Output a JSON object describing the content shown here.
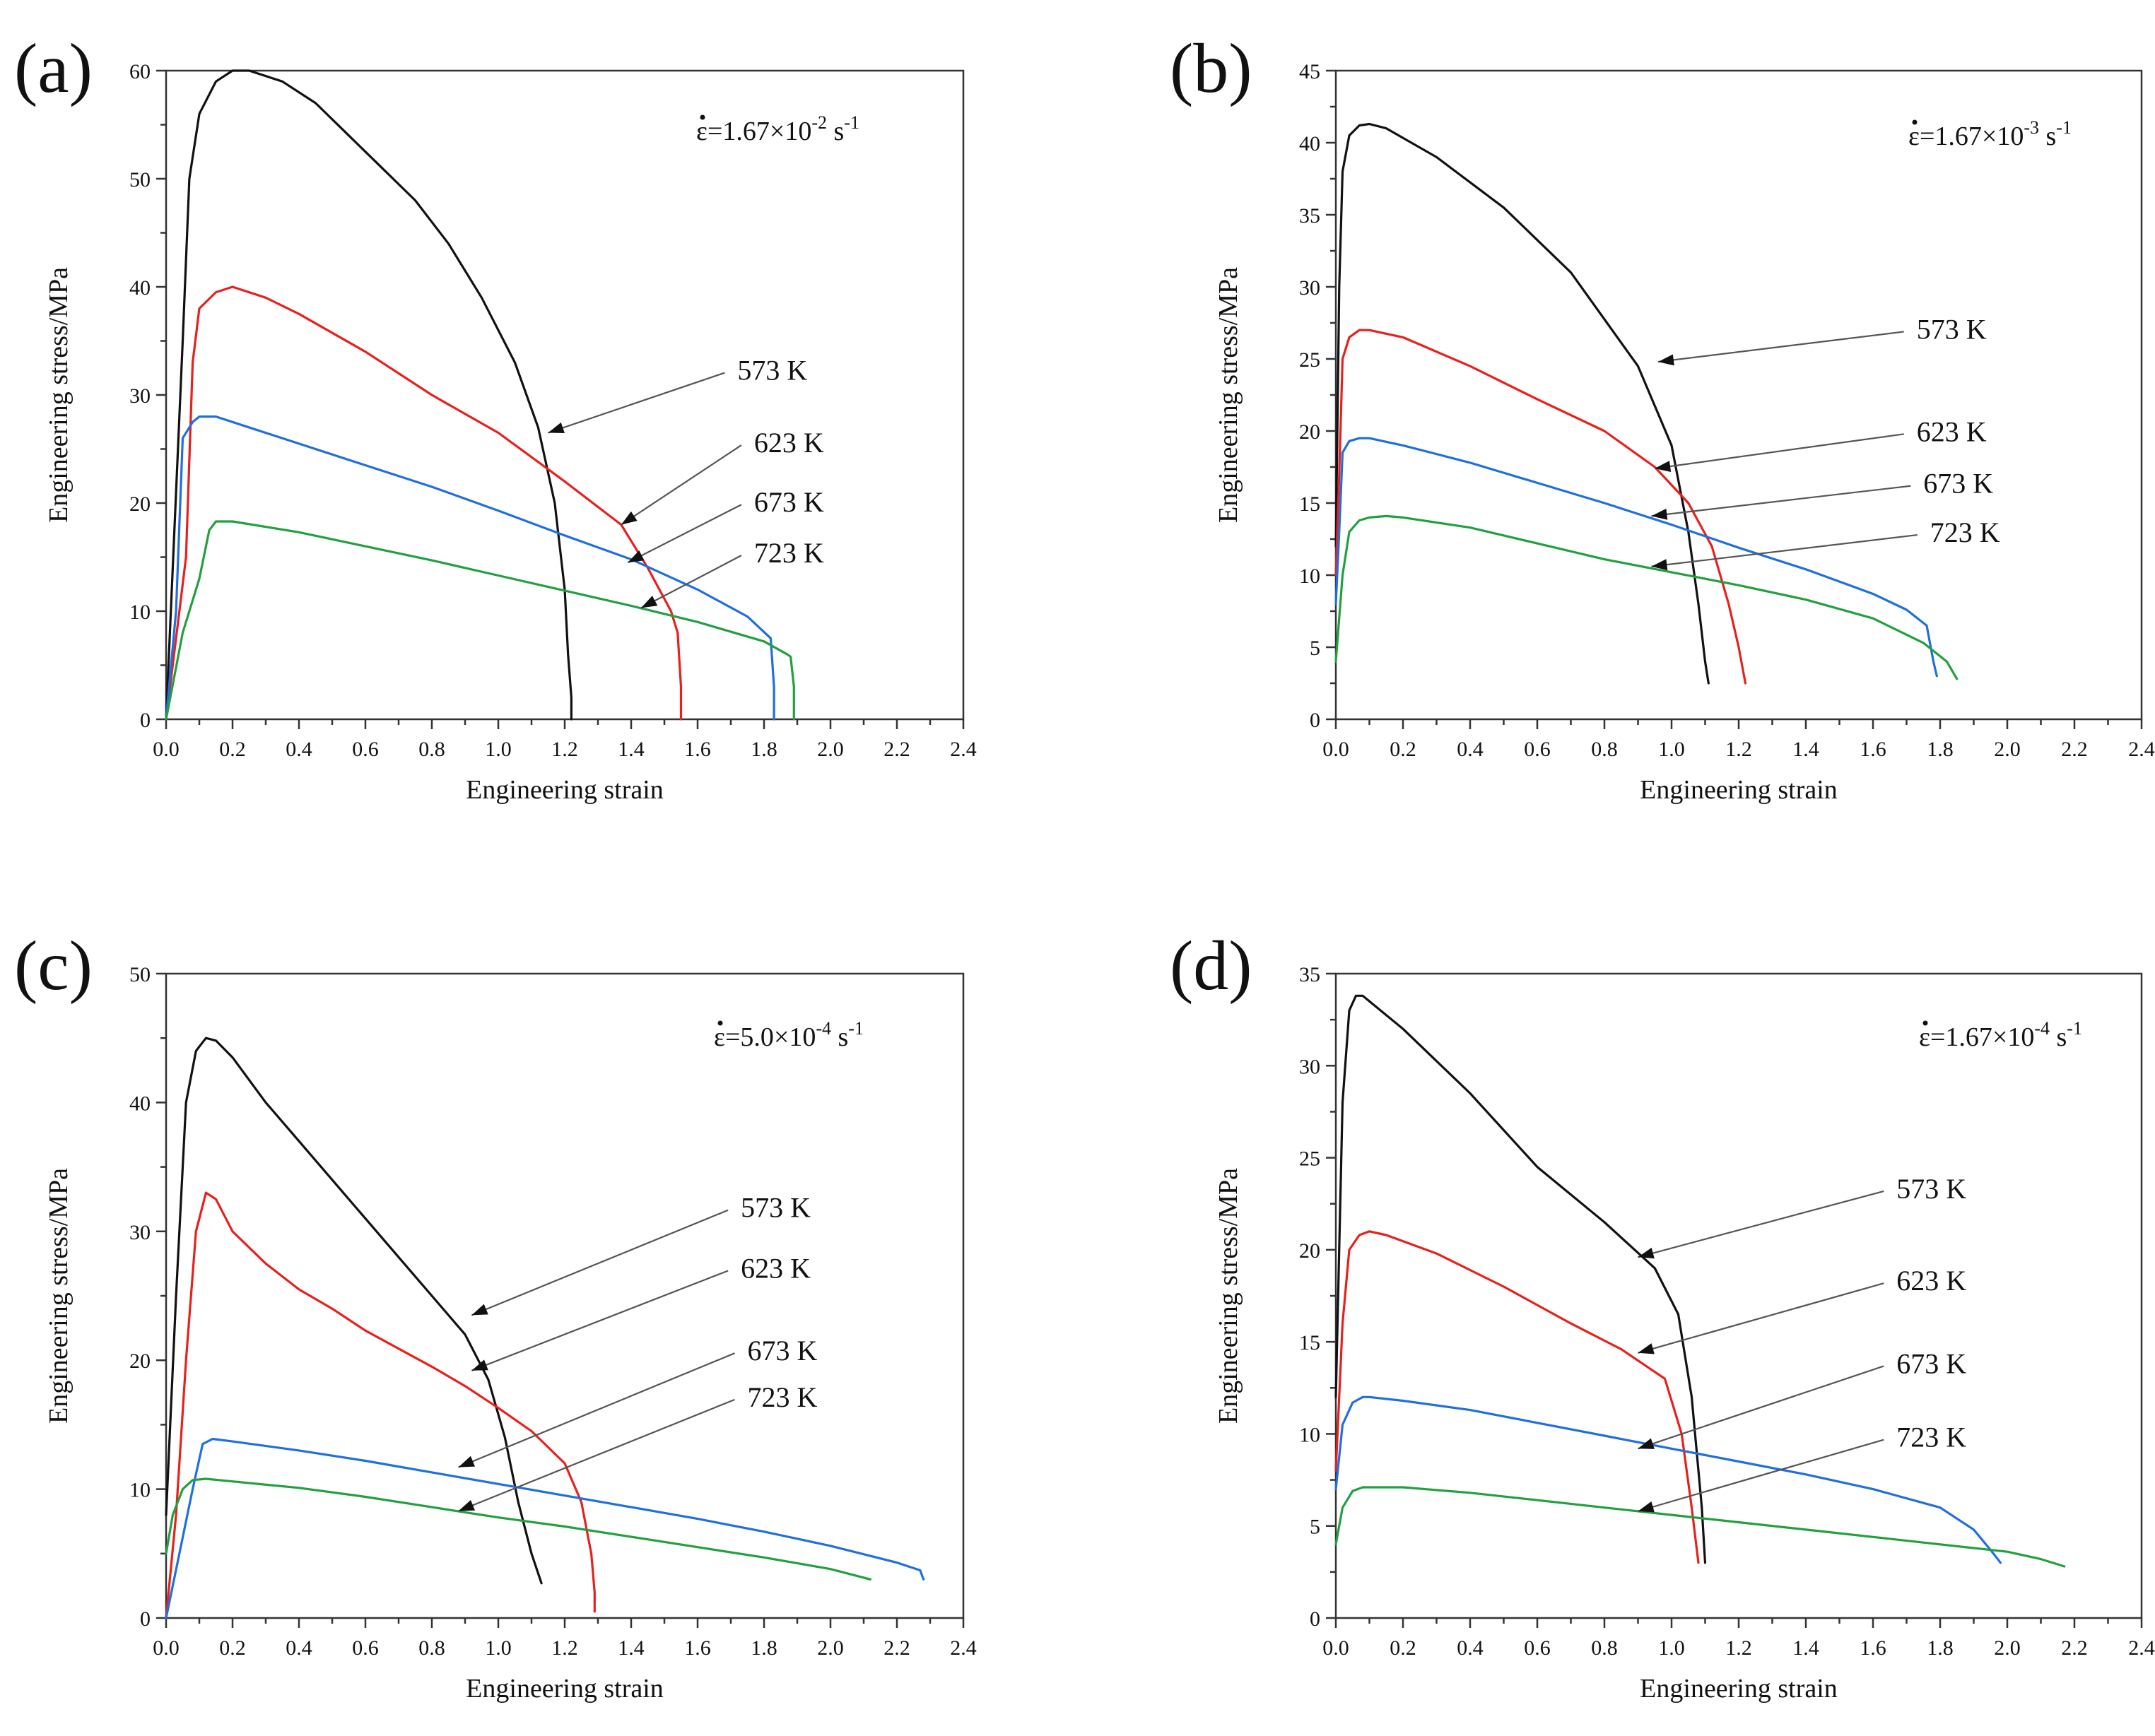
{
  "figure": {
    "colors": {
      "573 K": "#111111",
      "623 K": "#e8201c",
      "673 K": "#1f6fe0",
      "723 K": "#22a040"
    }
  },
  "chart_data": [
    {
      "type": "line",
      "panel": "(a)",
      "rate_annotation": {
        "prefix": "ε=1.67×10",
        "exponent": "-2",
        "suffix": " s",
        "unit_exp": "-1"
      },
      "xlabel": "Engineering strain",
      "ylabel": "Engineering stress/MPa",
      "xlim": [
        0.0,
        2.4
      ],
      "ylim": [
        0,
        60
      ],
      "xticks": [
        "0.0",
        "0.2",
        "0.4",
        "0.6",
        "0.8",
        "1.0",
        "1.2",
        "1.4",
        "1.6",
        "1.8",
        "2.0",
        "2.2",
        "2.4"
      ],
      "yticks": [
        "0",
        "10",
        "20",
        "30",
        "40",
        "50",
        "60"
      ],
      "series": [
        {
          "name": "573 K",
          "x": [
            0,
            0.05,
            0.07,
            0.1,
            0.15,
            0.2,
            0.25,
            0.35,
            0.45,
            0.55,
            0.65,
            0.75,
            0.85,
            0.95,
            1.05,
            1.12,
            1.17,
            1.2,
            1.21,
            1.22,
            1.22
          ],
          "y": [
            0,
            35,
            50,
            56,
            59,
            60,
            60,
            59,
            57,
            54,
            51,
            48,
            44,
            39,
            33,
            27,
            20,
            12,
            6,
            2,
            0
          ]
        },
        {
          "name": "623 K",
          "x": [
            0,
            0.06,
            0.08,
            0.1,
            0.15,
            0.2,
            0.3,
            0.4,
            0.6,
            0.8,
            1.0,
            1.2,
            1.37,
            1.45,
            1.52,
            1.54,
            1.55,
            1.55
          ],
          "y": [
            0,
            15,
            33,
            38,
            39.5,
            40,
            39,
            37.5,
            34,
            30,
            26.5,
            22,
            18,
            14,
            10,
            8,
            3,
            0
          ]
        },
        {
          "name": "673 K",
          "x": [
            0,
            0.03,
            0.05,
            0.08,
            0.1,
            0.15,
            0.2,
            0.4,
            0.6,
            0.8,
            1.0,
            1.2,
            1.4,
            1.6,
            1.75,
            1.82,
            1.83,
            1.83
          ],
          "y": [
            0,
            10,
            26,
            27.5,
            28,
            28,
            27.5,
            25.5,
            23.5,
            21.5,
            19.3,
            17,
            14.8,
            12,
            9.5,
            7.5,
            3,
            0
          ]
        },
        {
          "name": "723 K",
          "x": [
            0,
            0.05,
            0.1,
            0.13,
            0.15,
            0.2,
            0.4,
            0.6,
            0.8,
            1.0,
            1.2,
            1.4,
            1.6,
            1.8,
            1.87,
            1.88,
            1.89,
            1.89
          ],
          "y": [
            0,
            8,
            13,
            17.5,
            18.3,
            18.3,
            17.3,
            16,
            14.7,
            13.3,
            11.9,
            10.5,
            9,
            7.2,
            6,
            5.8,
            3,
            0
          ]
        }
      ],
      "annotations": [
        {
          "label": "573 K",
          "label_at": [
            1.72,
            31.4
          ],
          "arrow_to": [
            1.15,
            26.5
          ]
        },
        {
          "label": "623 K",
          "label_at": [
            1.77,
            24.7
          ],
          "arrow_to": [
            1.37,
            18
          ]
        },
        {
          "label": "673 K",
          "label_at": [
            1.77,
            19.2
          ],
          "arrow_to": [
            1.39,
            14.5
          ]
        },
        {
          "label": "723 K",
          "label_at": [
            1.77,
            14.5
          ],
          "arrow_to": [
            1.43,
            10.3
          ]
        }
      ]
    },
    {
      "type": "line",
      "panel": "(b)",
      "rate_annotation": {
        "prefix": "ε=1.67×10",
        "exponent": "-3",
        "suffix": " s",
        "unit_exp": "-1"
      },
      "xlabel": "Engineering strain",
      "ylabel": "Engineering stress/MPa",
      "xlim": [
        0.0,
        2.4
      ],
      "ylim": [
        0,
        45
      ],
      "xticks": [
        "0.0",
        "0.2",
        "0.4",
        "0.6",
        "0.8",
        "1.0",
        "1.2",
        "1.4",
        "1.6",
        "1.8",
        "2.0",
        "2.2",
        "2.4"
      ],
      "yticks": [
        "0",
        "5",
        "10",
        "15",
        "20",
        "25",
        "30",
        "35",
        "40",
        "45"
      ],
      "series": [
        {
          "name": "573 K",
          "x": [
            0.0,
            0.01,
            0.02,
            0.04,
            0.07,
            0.1,
            0.15,
            0.3,
            0.5,
            0.7,
            0.9,
            1.0,
            1.05,
            1.08,
            1.1,
            1.11
          ],
          "y": [
            12,
            30,
            38,
            40.5,
            41.2,
            41.3,
            41,
            39,
            35.5,
            31,
            24.5,
            19,
            13,
            8,
            4,
            2.5
          ]
        },
        {
          "name": "623 K",
          "x": [
            0.0,
            0.01,
            0.02,
            0.04,
            0.07,
            0.1,
            0.2,
            0.4,
            0.6,
            0.8,
            0.95,
            1.05,
            1.12,
            1.17,
            1.2,
            1.22
          ],
          "y": [
            10,
            17,
            25,
            26.5,
            27,
            27,
            26.5,
            24.5,
            22.2,
            20,
            17.5,
            15,
            12,
            8,
            5,
            2.5
          ]
        },
        {
          "name": "673 K",
          "x": [
            0.0,
            0.01,
            0.02,
            0.04,
            0.07,
            0.1,
            0.2,
            0.4,
            0.6,
            0.8,
            1.0,
            1.2,
            1.4,
            1.6,
            1.7,
            1.76,
            1.78,
            1.79
          ],
          "y": [
            8,
            13,
            18.5,
            19.3,
            19.5,
            19.5,
            19,
            17.8,
            16.4,
            15,
            13.5,
            11.9,
            10.4,
            8.7,
            7.6,
            6.5,
            4,
            3
          ]
        },
        {
          "name": "723 K",
          "x": [
            0.0,
            0.02,
            0.04,
            0.07,
            0.1,
            0.15,
            0.2,
            0.4,
            0.6,
            0.8,
            1.0,
            1.2,
            1.4,
            1.6,
            1.75,
            1.82,
            1.85
          ],
          "y": [
            4,
            10,
            13,
            13.8,
            14,
            14.1,
            14,
            13.3,
            12.2,
            11.1,
            10.2,
            9.3,
            8.3,
            7,
            5.3,
            4,
            2.8
          ]
        }
      ],
      "annotations": [
        {
          "label": "573 K",
          "label_at": [
            1.73,
            26.4
          ],
          "arrow_to": [
            0.96,
            24.8
          ]
        },
        {
          "label": "623 K",
          "label_at": [
            1.73,
            19.3
          ],
          "arrow_to": [
            0.95,
            17.4
          ]
        },
        {
          "label": "673 K",
          "label_at": [
            1.75,
            15.7
          ],
          "arrow_to": [
            0.94,
            14.1
          ]
        },
        {
          "label": "723 K",
          "label_at": [
            1.77,
            12.3
          ],
          "arrow_to": [
            0.94,
            10.6
          ]
        }
      ]
    },
    {
      "type": "line",
      "panel": "(c)",
      "rate_annotation": {
        "prefix": "ε=5.0×10",
        "exponent": "-4",
        "suffix": " s",
        "unit_exp": "-1"
      },
      "xlabel": "Engineering strain",
      "ylabel": "Engineering stress/MPa",
      "xlim": [
        0.0,
        2.4
      ],
      "ylim": [
        0,
        50
      ],
      "xticks": [
        "0.0",
        "0.2",
        "0.4",
        "0.6",
        "0.8",
        "1.0",
        "1.2",
        "1.4",
        "1.6",
        "1.8",
        "2.0",
        "2.2",
        "2.4"
      ],
      "yticks": [
        "0",
        "10",
        "20",
        "30",
        "40",
        "50"
      ],
      "series": [
        {
          "name": "573 K",
          "x": [
            0.0,
            0.03,
            0.06,
            0.09,
            0.12,
            0.15,
            0.2,
            0.3,
            0.4,
            0.5,
            0.6,
            0.7,
            0.8,
            0.9,
            0.97,
            1.02,
            1.06,
            1.1,
            1.13
          ],
          "y": [
            8,
            25,
            40,
            44,
            45,
            44.8,
            43.5,
            40,
            37,
            34,
            31,
            28,
            25,
            22,
            18.5,
            14,
            9,
            5,
            2.7
          ]
        },
        {
          "name": "623 K",
          "x": [
            0.0,
            0.03,
            0.06,
            0.09,
            0.12,
            0.15,
            0.2,
            0.3,
            0.4,
            0.5,
            0.6,
            0.7,
            0.8,
            0.9,
            1.0,
            1.1,
            1.2,
            1.25,
            1.28,
            1.29,
            1.29
          ],
          "y": [
            0,
            8,
            20,
            30,
            33,
            32.5,
            30,
            27.5,
            25.5,
            24,
            22.3,
            20.9,
            19.5,
            18,
            16.3,
            14.5,
            12,
            9,
            5,
            2,
            0.5
          ]
        },
        {
          "name": "673 K",
          "x": [
            0.0,
            0.04,
            0.08,
            0.11,
            0.14,
            0.2,
            0.4,
            0.6,
            0.8,
            1.0,
            1.2,
            1.4,
            1.6,
            1.8,
            2.0,
            2.2,
            2.27,
            2.28
          ],
          "y": [
            0,
            5,
            10,
            13.5,
            13.9,
            13.7,
            13,
            12.2,
            11.3,
            10.4,
            9.5,
            8.6,
            7.7,
            6.7,
            5.6,
            4.3,
            3.7,
            3
          ]
        },
        {
          "name": "723 K",
          "x": [
            0.0,
            0.02,
            0.05,
            0.08,
            0.12,
            0.2,
            0.4,
            0.6,
            0.8,
            1.0,
            1.2,
            1.4,
            1.6,
            1.8,
            2.0,
            2.12
          ],
          "y": [
            5,
            8,
            10,
            10.7,
            10.8,
            10.6,
            10.1,
            9.4,
            8.6,
            7.8,
            7.1,
            6.3,
            5.5,
            4.7,
            3.8,
            3
          ]
        }
      ],
      "annotations": [
        {
          "label": "573 K",
          "label_at": [
            1.73,
            31.1
          ],
          "arrow_to": [
            0.92,
            23.5
          ]
        },
        {
          "label": "623 K",
          "label_at": [
            1.73,
            26.4
          ],
          "arrow_to": [
            0.92,
            19.2
          ]
        },
        {
          "label": "673 K",
          "label_at": [
            1.75,
            20
          ],
          "arrow_to": [
            0.88,
            11.7
          ]
        },
        {
          "label": "723 K",
          "label_at": [
            1.75,
            16.4
          ],
          "arrow_to": [
            0.88,
            8.3
          ]
        }
      ]
    },
    {
      "type": "line",
      "panel": "(d)",
      "rate_annotation": {
        "prefix": "ε=1.67×10",
        "exponent": "-4",
        "suffix": " s",
        "unit_exp": "-1"
      },
      "xlabel": "Engineering strain",
      "ylabel": "Engineering stress/MPa",
      "xlim": [
        0.0,
        2.4
      ],
      "ylim": [
        0,
        35
      ],
      "xticks": [
        "0.0",
        "0.2",
        "0.4",
        "0.6",
        "0.8",
        "1.0",
        "1.2",
        "1.4",
        "1.6",
        "1.8",
        "2.0",
        "2.2",
        "2.4"
      ],
      "yticks": [
        "0",
        "5",
        "10",
        "15",
        "20",
        "25",
        "30",
        "35"
      ],
      "series": [
        {
          "name": "573 K",
          "x": [
            0.0,
            0.02,
            0.04,
            0.06,
            0.08,
            0.1,
            0.2,
            0.4,
            0.6,
            0.8,
            0.95,
            1.02,
            1.06,
            1.09,
            1.1
          ],
          "y": [
            12,
            28,
            33,
            33.8,
            33.8,
            33.5,
            32,
            28.5,
            24.5,
            21.5,
            19,
            16.5,
            12,
            6,
            3
          ]
        },
        {
          "name": "623 K",
          "x": [
            0.0,
            0.02,
            0.04,
            0.07,
            0.1,
            0.15,
            0.3,
            0.5,
            0.7,
            0.85,
            0.98,
            1.03,
            1.06,
            1.08
          ],
          "y": [
            8,
            16,
            20,
            20.8,
            21,
            20.8,
            19.8,
            18,
            16,
            14.6,
            13,
            10,
            6,
            3
          ]
        },
        {
          "name": "673 K",
          "x": [
            0.0,
            0.02,
            0.05,
            0.08,
            0.1,
            0.2,
            0.4,
            0.6,
            0.8,
            1.0,
            1.2,
            1.4,
            1.6,
            1.8,
            1.9,
            1.95,
            1.98
          ],
          "y": [
            7,
            10.5,
            11.7,
            12,
            12,
            11.8,
            11.3,
            10.6,
            9.9,
            9.2,
            8.5,
            7.8,
            7,
            6,
            4.8,
            3.7,
            3
          ]
        },
        {
          "name": "723 K",
          "x": [
            0.0,
            0.02,
            0.05,
            0.08,
            0.1,
            0.2,
            0.4,
            0.6,
            0.8,
            1.0,
            1.2,
            1.4,
            1.6,
            1.8,
            2.0,
            2.1,
            2.17
          ],
          "y": [
            4,
            6,
            6.9,
            7.1,
            7.1,
            7.1,
            6.8,
            6.4,
            6,
            5.6,
            5.2,
            4.8,
            4.4,
            4,
            3.6,
            3.2,
            2.8
          ]
        }
      ],
      "annotations": [
        {
          "label": "573 K",
          "label_at": [
            1.67,
            22.8
          ],
          "arrow_to": [
            0.9,
            19.6
          ]
        },
        {
          "label": "623 K",
          "label_at": [
            1.67,
            17.8
          ],
          "arrow_to": [
            0.9,
            14.4
          ]
        },
        {
          "label": "673 K",
          "label_at": [
            1.67,
            13.3
          ],
          "arrow_to": [
            0.9,
            9.2
          ]
        },
        {
          "label": "723 K",
          "label_at": [
            1.67,
            9.3
          ],
          "arrow_to": [
            0.9,
            5.8
          ]
        }
      ]
    }
  ]
}
